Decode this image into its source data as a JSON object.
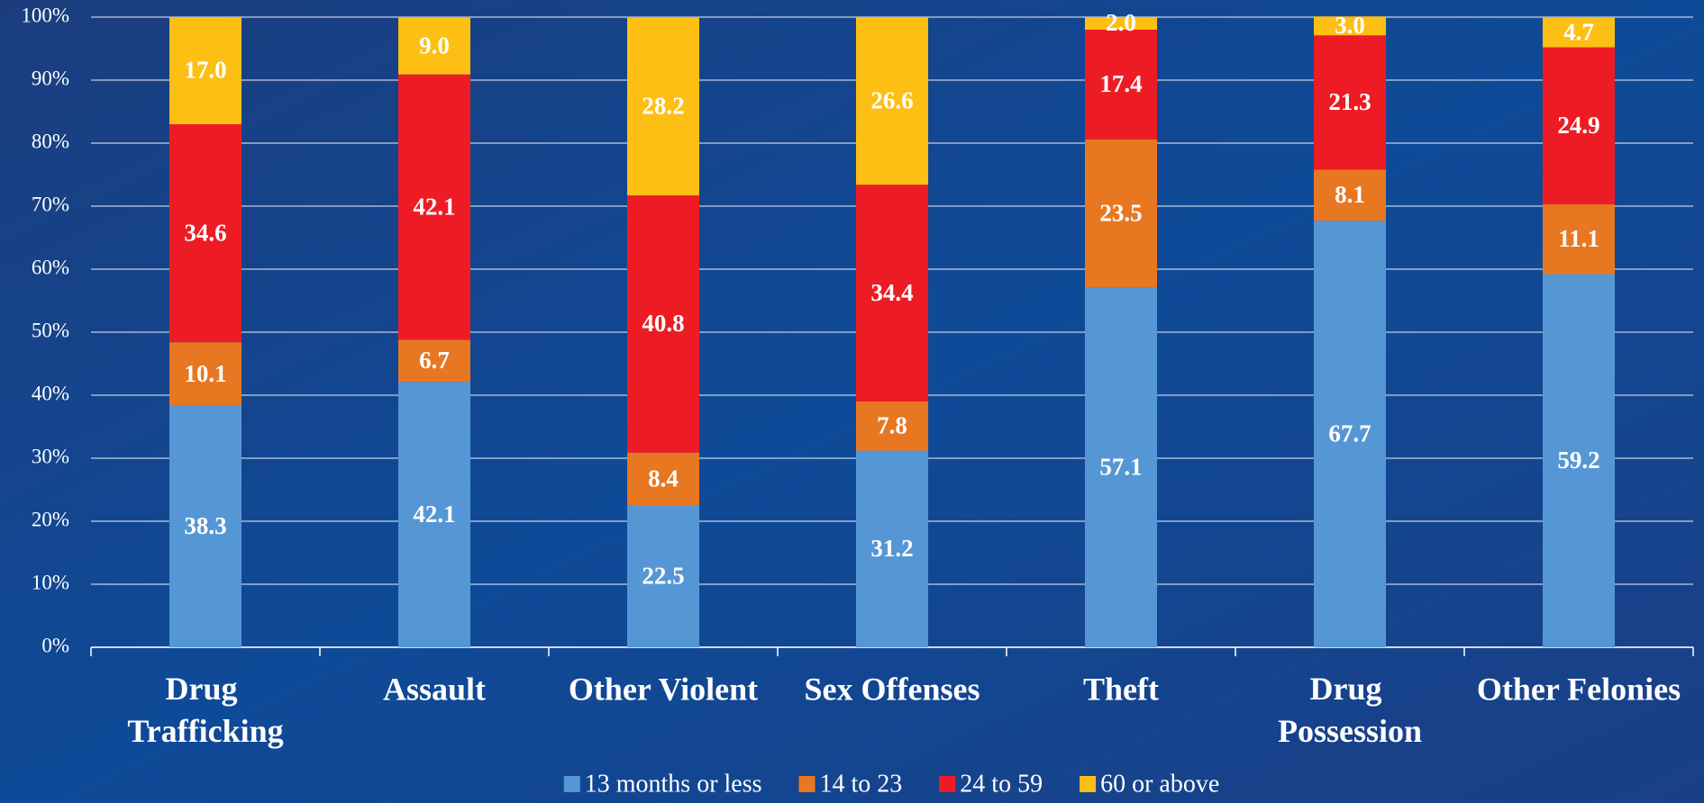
{
  "chart_data": {
    "type": "stacked_bar",
    "categories": [
      "Drug Trafficking",
      "Assault",
      "Other Violent",
      "Sex Offenses",
      "Theft",
      "Drug Possession",
      "Other Felonies"
    ],
    "series": [
      {
        "name": "13 months or less",
        "color": "#5597d4",
        "values": [
          38.3,
          42.1,
          22.5,
          31.2,
          57.1,
          67.7,
          59.2
        ],
        "value_labels": [
          "38.3",
          "42.1",
          "22.5",
          "31.2",
          "57.1",
          "67.7",
          "59.2"
        ]
      },
      {
        "name": "14 to 23",
        "color": "#e87722",
        "values": [
          10.1,
          6.7,
          8.4,
          7.8,
          23.5,
          8.1,
          11.1
        ],
        "value_labels": [
          "10.1",
          "6.7",
          "8.4",
          "7.8",
          "23.5",
          "8.1",
          "11.1"
        ]
      },
      {
        "name": "24 to 59",
        "color": "#ed1c24",
        "values": [
          34.6,
          42.1,
          40.8,
          34.4,
          17.4,
          21.3,
          24.9
        ],
        "value_labels": [
          "34.6",
          "42.1",
          "40.8",
          "34.4",
          "17.4",
          "21.3",
          "24.9"
        ]
      },
      {
        "name": "60 or above",
        "color": "#fdbf14",
        "values": [
          17.0,
          9.0,
          28.2,
          26.6,
          2.0,
          3.0,
          4.7
        ],
        "value_labels": [
          "17.0",
          "9.0",
          "28.2",
          "26.6",
          "2.0",
          "3.0",
          "4.7"
        ]
      }
    ],
    "ylim": [
      0,
      100
    ],
    "yticks": [
      {
        "value": 0,
        "label": "0%"
      },
      {
        "value": 10,
        "label": "10%"
      },
      {
        "value": 20,
        "label": "20%"
      },
      {
        "value": 30,
        "label": "30%"
      },
      {
        "value": 40,
        "label": "40%"
      },
      {
        "value": 50,
        "label": "50%"
      },
      {
        "value": 60,
        "label": "60%"
      },
      {
        "value": 70,
        "label": "70%"
      },
      {
        "value": 80,
        "label": "80%"
      },
      {
        "value": 90,
        "label": "90%"
      },
      {
        "value": 100,
        "label": "100%"
      }
    ],
    "grid": true,
    "legend": "bottom"
  }
}
